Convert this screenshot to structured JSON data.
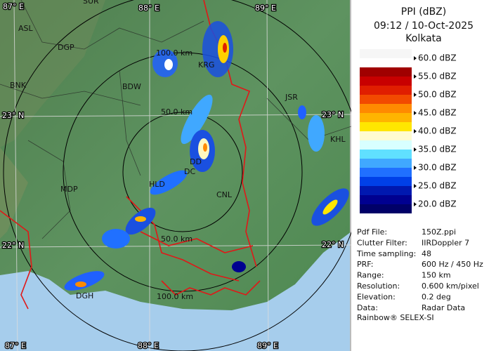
{
  "header": {
    "title": "PPI (dBZ)",
    "time": "09:12 / 10-Oct-2025",
    "station": "Kolkata"
  },
  "legend": [
    {
      "label": "60.0 dBZ",
      "colors": [
        "#f6f6f6",
        "#ffffff"
      ]
    },
    {
      "label": "55.0 dBZ",
      "colors": [
        "#a00000",
        "#c80000"
      ]
    },
    {
      "label": "50.0 dBZ",
      "colors": [
        "#e01e00",
        "#f24a00"
      ]
    },
    {
      "label": "45.0 dBZ",
      "colors": [
        "#ff8a00",
        "#ffb400"
      ]
    },
    {
      "label": "40.0 dBZ",
      "colors": [
        "#ffe600",
        "#fffbd0"
      ]
    },
    {
      "label": "35.0 dBZ",
      "colors": [
        "#d8ffff",
        "#60e0ff"
      ]
    },
    {
      "label": "30.0 dBZ",
      "colors": [
        "#40a8ff",
        "#2070ff"
      ]
    },
    {
      "label": "25.0 dBZ",
      "colors": [
        "#0040e8",
        "#0018b0"
      ]
    },
    {
      "label": "20.0 dBZ",
      "colors": [
        "#000090",
        "#000068"
      ]
    }
  ],
  "info": [
    [
      "Pdf File:",
      "150Z.ppi"
    ],
    [
      "Clutter Filter:",
      "IIRDoppler 7"
    ],
    [
      "Time sampling:",
      "48"
    ],
    [
      "PRF:",
      "600 Hz / 450 Hz"
    ],
    [
      "Range:",
      "150 km"
    ],
    [
      "Resolution:",
      "0.600 km/pixel"
    ],
    [
      "Elevation:",
      "0.2 deg"
    ],
    [
      "Data:",
      "Radar Data"
    ]
  ],
  "footer": "Rainbow® SELEX-SI",
  "map": {
    "places": [
      "SUR",
      "ASL",
      "DGP",
      "BNK",
      "BDW",
      "KRG",
      "JSR",
      "KHL",
      "DD",
      "DC",
      "HLD",
      "MDP",
      "CNL",
      "DGH"
    ],
    "rings": [
      "100.0 km",
      "50.0 km",
      "50.0 km",
      "100.0 km"
    ],
    "grid": [
      "87° E",
      "88° E",
      "89° E",
      "23° N",
      "23° N",
      "22° N",
      "22° N",
      "87° E",
      "88° E",
      "89° E"
    ]
  }
}
